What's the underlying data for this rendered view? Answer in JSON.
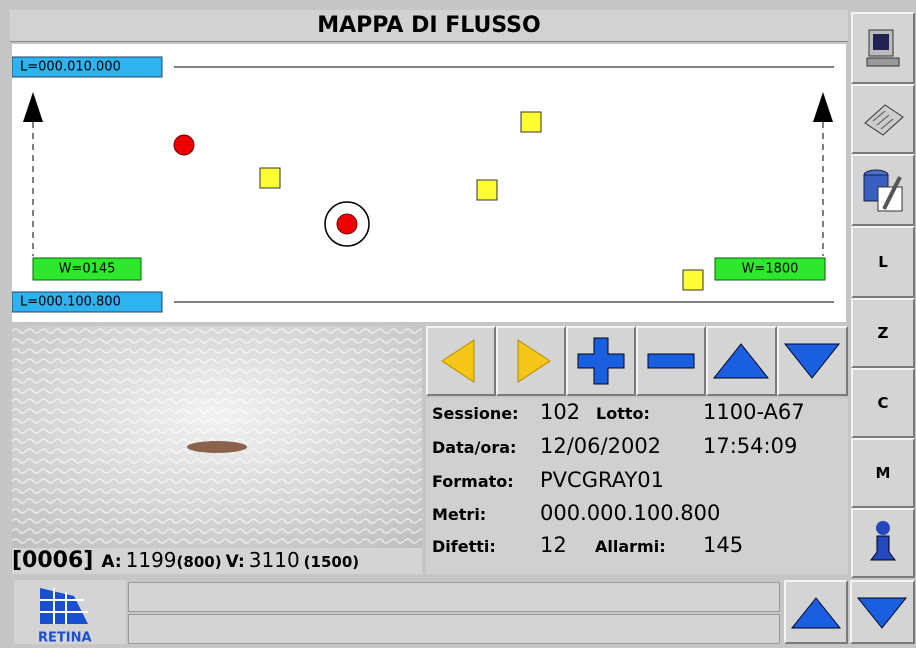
{
  "header": {
    "title": "MAPPA DI FLUSSO"
  },
  "flow_map": {
    "length_top": "L=000.010.000",
    "length_bottom": "L=000.100.800",
    "width_left": "W=0145",
    "width_right": "W=1800"
  },
  "image_panel": {
    "defect_id": "[0006]",
    "a_label": "A:",
    "a_value": "1199",
    "a_ref": "(800)",
    "v_label": "V:",
    "v_value": "3110",
    "v_ref": "(1500)"
  },
  "info": {
    "session_label": "Sessione:",
    "session": "102",
    "lot_label": "Lotto:",
    "lot": "1100-A67",
    "datetime_label": "Data/ora:",
    "date": "12/06/2002",
    "time": "17:54:09",
    "format_label": "Formato:",
    "format": "PVCGRAY01",
    "meters_label": "Metri:",
    "meters": "000.000.100.800",
    "defects_label": "Difetti:",
    "defects": "12",
    "alarms_label": "Allarmi:",
    "alarms": "145"
  },
  "sidebar": {
    "buttons": [
      "L",
      "Z",
      "C",
      "M"
    ]
  },
  "footer": {
    "logo": "RETINA"
  }
}
